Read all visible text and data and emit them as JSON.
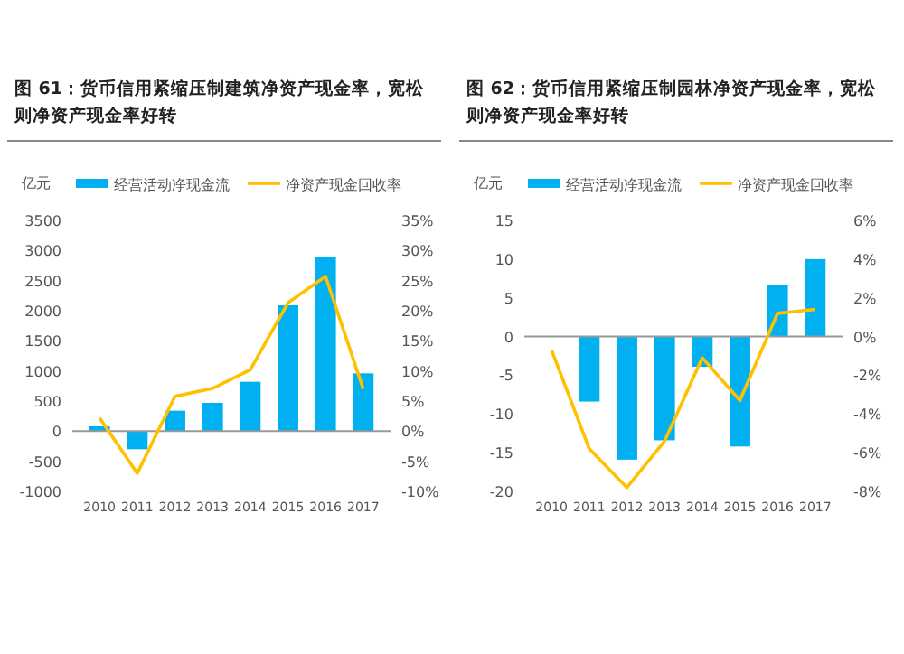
{
  "chart_data": [
    {
      "type": "bar",
      "title": "图 61：货币信用紧缩压制建筑净资产现金率，宽松则净资产现金率好转",
      "ylabel": "亿元",
      "categories": [
        "2010",
        "2011",
        "2012",
        "2013",
        "2014",
        "2015",
        "2016",
        "2017"
      ],
      "ylim": [
        -1000,
        3500
      ],
      "yticks": [
        -1000,
        -500,
        0,
        500,
        1000,
        1500,
        2000,
        2500,
        3000,
        3500
      ],
      "y2lim": [
        -10,
        35
      ],
      "y2ticks": [
        {
          "value": -10,
          "label": "-10%"
        },
        {
          "value": -5,
          "label": "-5%"
        },
        {
          "value": 0,
          "label": "0%"
        },
        {
          "value": 5,
          "label": "5%"
        },
        {
          "value": 10,
          "label": "10%"
        },
        {
          "value": 15,
          "label": "15%"
        },
        {
          "value": 20,
          "label": "20%"
        },
        {
          "value": 25,
          "label": "25%"
        },
        {
          "value": 30,
          "label": "30%"
        },
        {
          "value": 35,
          "label": "35%"
        }
      ],
      "legend": "top",
      "series": [
        {
          "name": "经营活动净现金流",
          "color": "#00b0f0",
          "values": [
            80,
            -300,
            340,
            470,
            820,
            2090,
            2900,
            960
          ]
        },
        {
          "name": "净资产现金回收率",
          "type": "line",
          "axis": "y2",
          "color": "#ffc000",
          "values": [
            2.2,
            -7,
            5.8,
            7.1,
            10.2,
            21.3,
            25.7,
            7
          ]
        }
      ]
    },
    {
      "type": "bar",
      "title": "图 62：货币信用紧缩压制园林净资产现金率，宽松则净资产现金率好转",
      "ylabel": "亿元",
      "categories": [
        "2010",
        "2011",
        "2012",
        "2013",
        "2014",
        "2015",
        "2016",
        "2017"
      ],
      "ylim": [
        -20,
        15
      ],
      "yticks": [
        -20,
        -15,
        -10,
        -5,
        0,
        5,
        10,
        15
      ],
      "y2lim": [
        -8,
        6
      ],
      "y2ticks": [
        {
          "value": -8,
          "label": "-8%"
        },
        {
          "value": -6,
          "label": "-6%"
        },
        {
          "value": -4,
          "label": "-4%"
        },
        {
          "value": -2,
          "label": "-2%"
        },
        {
          "value": 0,
          "label": "0%"
        },
        {
          "value": 2,
          "label": "2%"
        },
        {
          "value": 4,
          "label": "4%"
        },
        {
          "value": 6,
          "label": "6%"
        }
      ],
      "legend": "top",
      "series": [
        {
          "name": "经营活动净现金流",
          "color": "#00b0f0",
          "values": [
            null,
            -8.4,
            -15.9,
            -13.4,
            -3.9,
            -14.2,
            6.7,
            10
          ]
        },
        {
          "name": "净资产现金回收率",
          "type": "line",
          "axis": "y2",
          "color": "#ffc000",
          "values": [
            -0.7,
            -5.8,
            -7.8,
            -5.4,
            -1.1,
            -3.3,
            1.2,
            1.4
          ]
        }
      ]
    }
  ]
}
